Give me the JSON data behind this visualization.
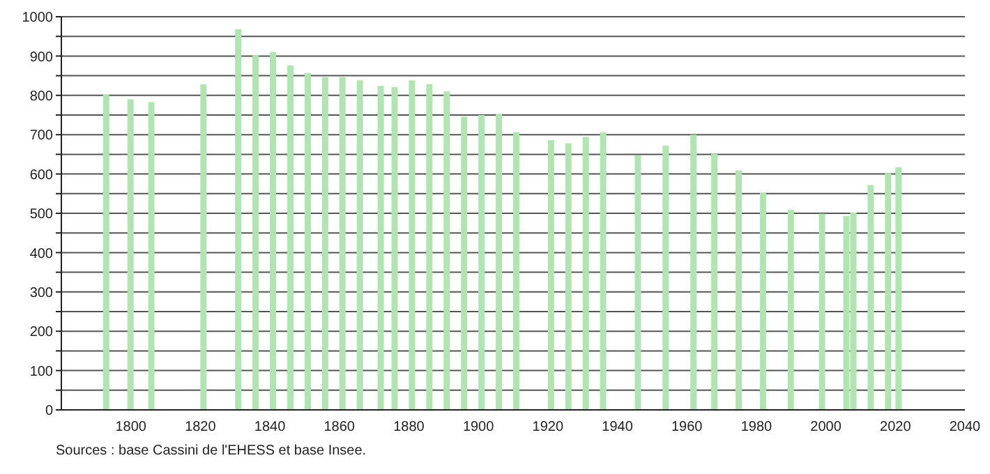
{
  "chart_data": {
    "type": "bar",
    "x": [
      1793,
      1800,
      1806,
      1821,
      1831,
      1836,
      1841,
      1846,
      1851,
      1856,
      1861,
      1866,
      1872,
      1876,
      1881,
      1886,
      1891,
      1896,
      1901,
      1906,
      1911,
      1921,
      1926,
      1931,
      1936,
      1946,
      1954,
      1962,
      1968,
      1975,
      1982,
      1990,
      1999,
      2006,
      2008,
      2013,
      2018,
      2021
    ],
    "values": [
      802,
      790,
      783,
      828,
      968,
      902,
      910,
      876,
      857,
      846,
      846,
      838,
      824,
      821,
      838,
      828,
      810,
      746,
      750,
      753,
      706,
      686,
      678,
      694,
      706,
      647,
      672,
      700,
      651,
      609,
      552,
      509,
      499,
      493,
      502,
      572,
      602,
      617
    ],
    "color": "#b0e4b0",
    "xlim": [
      1780,
      2040
    ],
    "xticks": [
      1800,
      1820,
      1840,
      1860,
      1880,
      1900,
      1920,
      1940,
      1960,
      1980,
      2000,
      2020,
      2040
    ],
    "ylim": [
      0,
      1000
    ],
    "yticks": [
      0,
      {
        "value": 50,
        "label": null
      },
      100,
      {
        "value": 150,
        "label": null
      },
      200,
      {
        "value": 250,
        "label": null
      },
      300,
      {
        "value": 350,
        "label": null
      },
      400,
      {
        "value": 450,
        "label": null
      },
      500,
      {
        "value": 550,
        "label": null
      },
      600,
      {
        "value": 650,
        "label": null
      },
      700,
      {
        "value": 750,
        "label": null
      },
      800,
      {
        "value": 850,
        "label": null
      },
      900,
      {
        "value": 950,
        "label": null
      },
      1000
    ],
    "grid": "y",
    "annotations": [
      "Sources : base Cassini de l'EHESS et base Insee."
    ]
  }
}
